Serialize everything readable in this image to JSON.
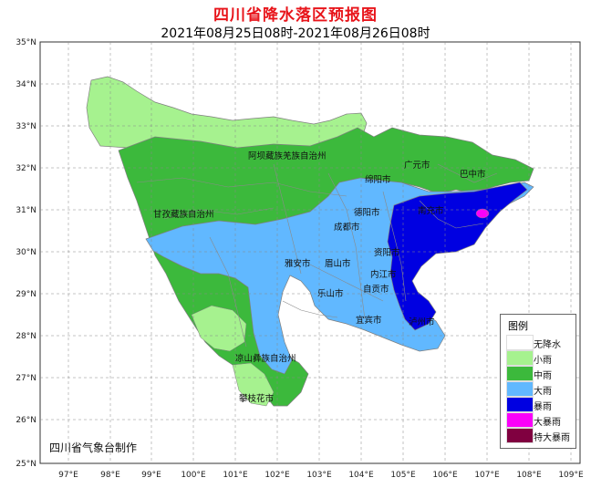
{
  "title": "四川省降水落区预报图",
  "subtitle": "2021年08月25日08时-2021年08月26日08时",
  "credit": "四川省气象台制作",
  "axes": {
    "lat_labels": [
      "35°N",
      "34°N",
      "33°N",
      "32°N",
      "31°N",
      "30°N",
      "29°N",
      "28°N",
      "27°N",
      "26°N",
      "25°N"
    ],
    "lon_labels": [
      "97°E",
      "98°E",
      "99°E",
      "100°E",
      "101°E",
      "102°E",
      "103°E",
      "104°E",
      "105°E",
      "106°E",
      "107°E",
      "108°E",
      "109°E"
    ]
  },
  "places": [
    "阿坝藏族羌族自治州",
    "广元市",
    "巴中市",
    "绵阳市",
    "甘孜藏族自治州",
    "南充市",
    "德阳市",
    "成都市",
    "资阳市",
    "雅安市",
    "眉山市",
    "内江市",
    "乐山市",
    "自贡市",
    "宜宾市",
    "泸州市",
    "凉山彝族自治州",
    "攀枝花市"
  ],
  "legend": {
    "title": "图例",
    "items": [
      {
        "label": "无降水",
        "color": "#ffffff"
      },
      {
        "label": "小雨",
        "color": "#a6f28f"
      },
      {
        "label": "中雨",
        "color": "#3cb93c"
      },
      {
        "label": "大雨",
        "color": "#61b8ff"
      },
      {
        "label": "暴雨",
        "color": "#0000e1"
      },
      {
        "label": "大暴雨",
        "color": "#fa00fa"
      },
      {
        "label": "特大暴雨",
        "color": "#800040"
      }
    ]
  },
  "colors": {
    "title": "#e8151b",
    "grid": "#888888",
    "boundary": "#7f7f7f"
  }
}
